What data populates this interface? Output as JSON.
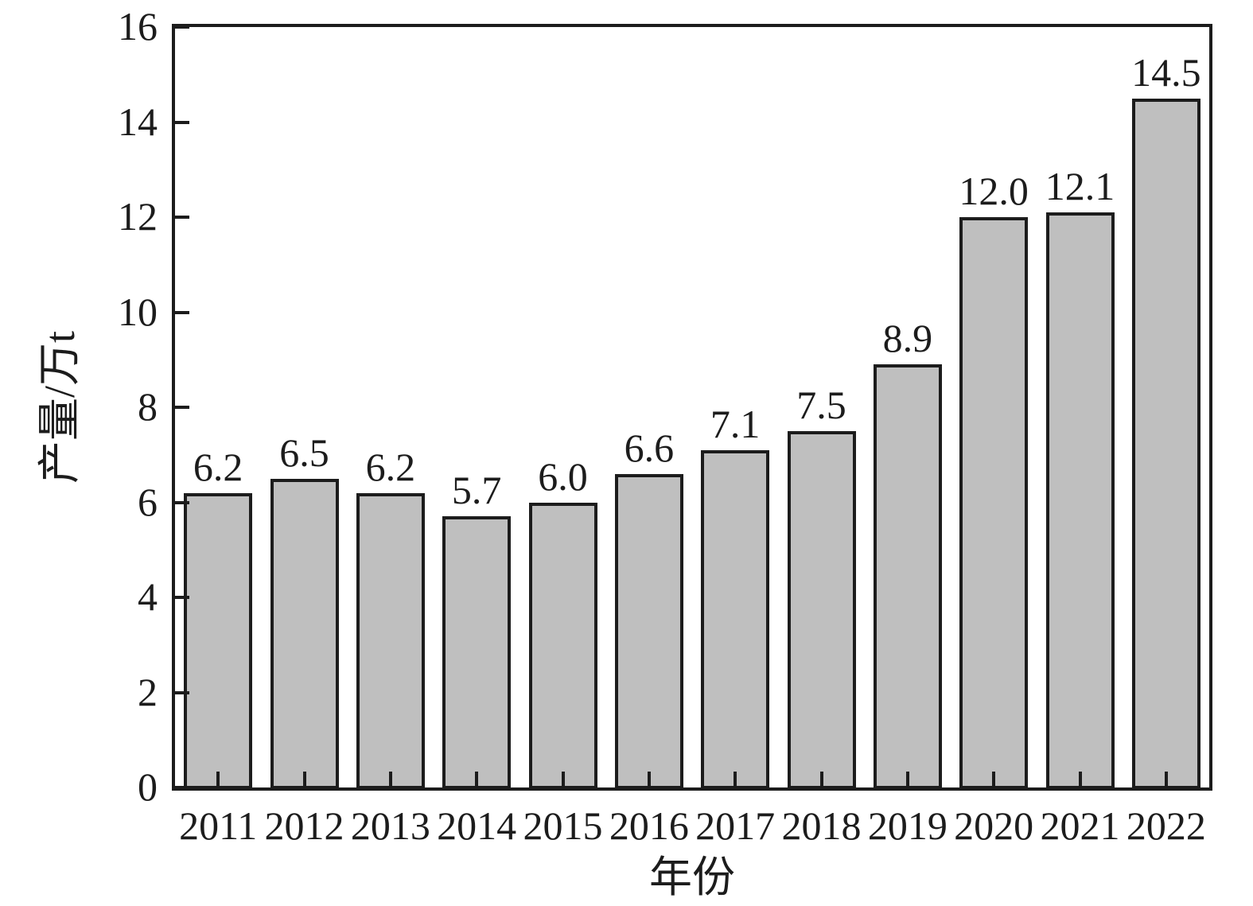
{
  "chart_data": {
    "type": "bar",
    "title": "",
    "xlabel": "年份",
    "ylabel": "产量/万t",
    "categories": [
      "2011",
      "2012",
      "2013",
      "2014",
      "2015",
      "2016",
      "2017",
      "2018",
      "2019",
      "2020",
      "2021",
      "2022"
    ],
    "values": [
      6.2,
      6.5,
      6.2,
      5.7,
      6.0,
      6.6,
      7.1,
      7.5,
      8.9,
      12.0,
      12.1,
      14.5
    ],
    "value_labels": [
      "6.2",
      "6.5",
      "6.2",
      "5.7",
      "6.0",
      "6.6",
      "7.1",
      "7.5",
      "8.9",
      "12.0",
      "12.1",
      "14.5"
    ],
    "ylim": [
      0,
      16
    ],
    "yticks": [
      0,
      2,
      4,
      6,
      8,
      10,
      12,
      14,
      16
    ],
    "grid": false,
    "legend": "none",
    "colors": {
      "bar_fill": "#bfbfbf",
      "bar_border": "#1c1c1c",
      "axis": "#1c1c1c",
      "text": "#1c1c1c",
      "background": "#ffffff"
    }
  }
}
